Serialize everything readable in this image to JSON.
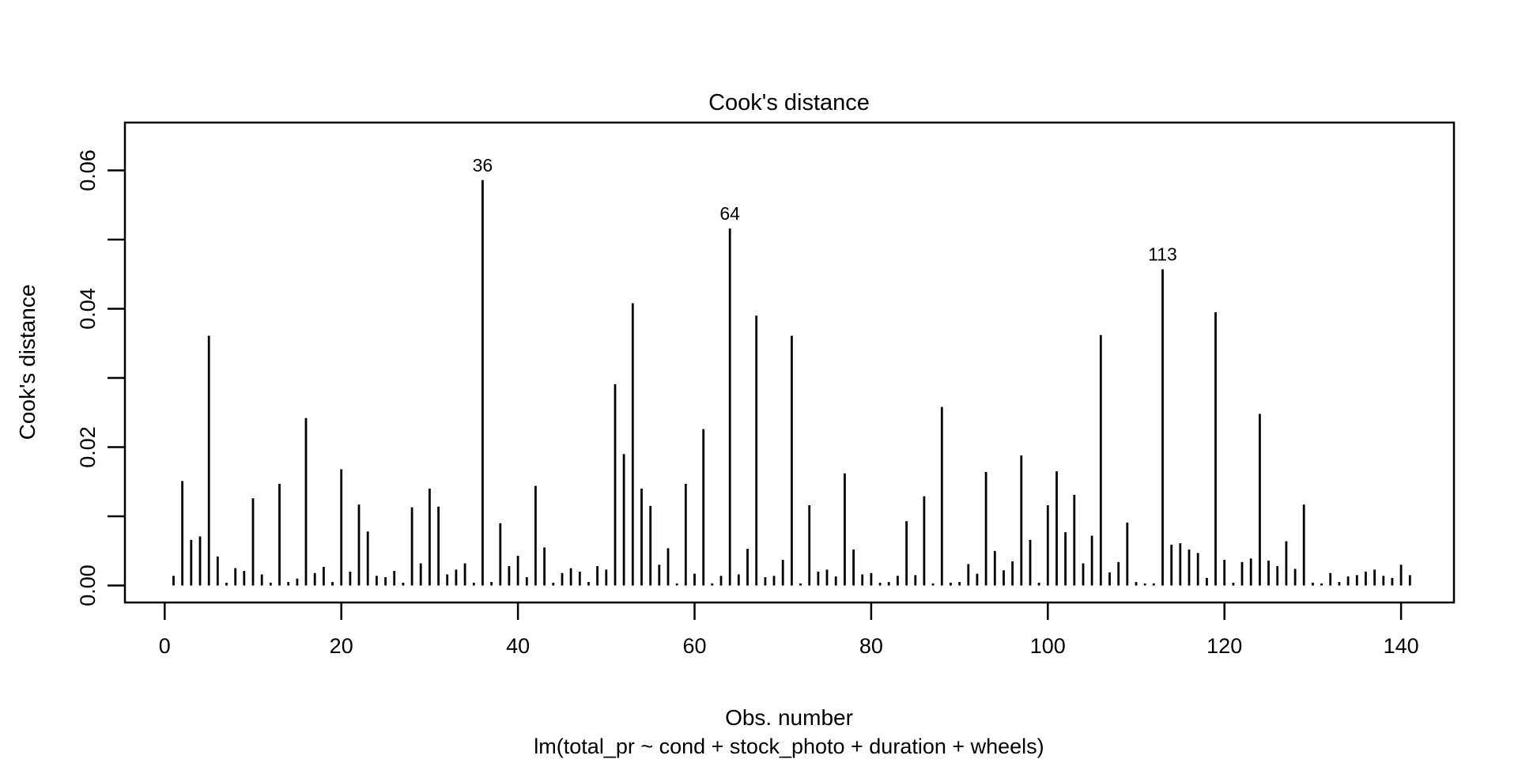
{
  "title": "Cook's distance",
  "axes": {
    "ylabel": "Cook's distance",
    "xlabel": "Obs. number",
    "subtitle": "lm(total_pr ~ cond + stock_photo + duration + wheels)"
  },
  "colors": {
    "foreground": "#000000",
    "background": "#ffffff"
  },
  "chart_data": {
    "type": "bar",
    "title": "Cook's distance",
    "xlabel": "Obs. number",
    "ylabel": "Cook's distance",
    "model_caption": "lm(total_pr ~ cond + stock_photo + duration + wheels)",
    "x_start_obs": 1,
    "n_obs": 141,
    "values": [
      0.0014,
      0.0151,
      0.0066,
      0.0071,
      0.0361,
      0.0042,
      0.0004,
      0.0025,
      0.0021,
      0.0126,
      0.0016,
      0.0004,
      0.0147,
      0.0005,
      0.001,
      0.0242,
      0.0018,
      0.0027,
      0.0005,
      0.0168,
      0.002,
      0.0117,
      0.0078,
      0.0014,
      0.0012,
      0.0021,
      0.0004,
      0.0113,
      0.0032,
      0.014,
      0.0114,
      0.0016,
      0.0023,
      0.0032,
      0.0004,
      0.0586,
      0.0005,
      0.009,
      0.0028,
      0.0043,
      0.0012,
      0.0144,
      0.0055,
      0.0004,
      0.0018,
      0.0025,
      0.002,
      0.0005,
      0.0028,
      0.0023,
      0.0291,
      0.019,
      0.0408,
      0.014,
      0.0115,
      0.003,
      0.0054,
      0.0003,
      0.0147,
      0.0017,
      0.0226,
      0.0003,
      0.0014,
      0.0516,
      0.0016,
      0.0053,
      0.039,
      0.0012,
      0.0014,
      0.0037,
      0.0361,
      0.0003,
      0.0116,
      0.002,
      0.0023,
      0.0013,
      0.0162,
      0.0052,
      0.0016,
      0.0018,
      0.0004,
      0.0005,
      0.0014,
      0.0093,
      0.0015,
      0.0129,
      0.0003,
      0.0258,
      0.0004,
      0.0005,
      0.0031,
      0.0017,
      0.0164,
      0.005,
      0.0022,
      0.0035,
      0.0188,
      0.0066,
      0.0004,
      0.0116,
      0.0165,
      0.0077,
      0.0131,
      0.0032,
      0.0072,
      0.0362,
      0.0019,
      0.0034,
      0.0091,
      0.0005,
      0.0003,
      0.0003,
      0.0457,
      0.0059,
      0.0061,
      0.0052,
      0.0047,
      0.0011,
      0.0395,
      0.0037,
      0.0004,
      0.0034,
      0.0039,
      0.0248,
      0.0036,
      0.0028,
      0.0064,
      0.0024,
      0.0117,
      0.0004,
      0.0003,
      0.0018,
      0.0005,
      0.0013,
      0.0015,
      0.002,
      0.0023,
      0.0014,
      0.0011,
      0.003,
      0.0015
    ],
    "labeled_points": [
      {
        "obs": "36",
        "value": 0.0586
      },
      {
        "obs": "64",
        "value": 0.0516
      },
      {
        "obs": "113",
        "value": 0.0457
      }
    ],
    "xticks": [
      0,
      20,
      40,
      60,
      80,
      100,
      120,
      140
    ],
    "yticks": [
      0.0,
      0.01,
      0.02,
      0.03,
      0.04,
      0.05,
      0.06
    ],
    "ytick_labels": [
      "0.00",
      "",
      "0.02",
      "",
      "0.04",
      "",
      "0.06"
    ],
    "xlim": [
      -4.5,
      146
    ],
    "ylim": [
      -0.0025,
      0.0669
    ],
    "grid": false,
    "legend": "none"
  }
}
